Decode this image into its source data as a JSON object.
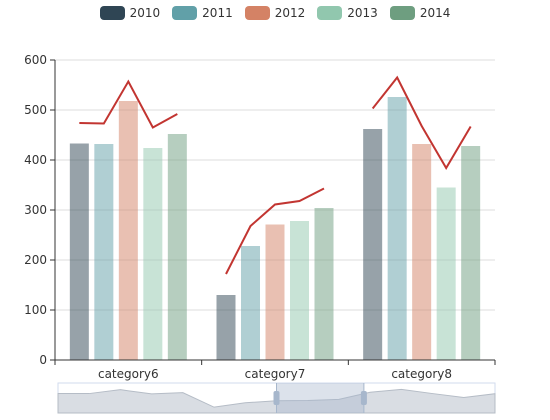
{
  "legend": [
    {
      "label": "2010",
      "color": "#2f4554"
    },
    {
      "label": "2011",
      "color": "#61a0a8"
    },
    {
      "label": "2012",
      "color": "#d48265"
    },
    {
      "label": "2013",
      "color": "#91c7ae"
    },
    {
      "label": "2014",
      "color": "#6e9e80"
    }
  ],
  "chart_data": {
    "type": "bar",
    "categories": [
      "category6",
      "category7",
      "category8"
    ],
    "series": [
      {
        "name": "2010",
        "values": [
          433,
          130,
          462
        ]
      },
      {
        "name": "2011",
        "values": [
          432,
          228,
          526
        ]
      },
      {
        "name": "2012",
        "values": [
          518,
          271,
          432
        ]
      },
      {
        "name": "2013",
        "values": [
          424,
          278,
          345
        ]
      },
      {
        "name": "2014",
        "values": [
          452,
          304,
          428
        ]
      }
    ],
    "line_series": {
      "color": "#c23531",
      "values": [
        [
          474,
          473,
          557,
          465,
          492
        ],
        [
          172,
          268,
          311,
          318,
          343
        ],
        [
          503,
          565,
          468,
          384,
          467
        ]
      ]
    },
    "yticks": [
      "0",
      "100",
      "200",
      "300",
      "400",
      "500",
      "600"
    ],
    "ylim": [
      0,
      600
    ],
    "grid": true,
    "legend_position": "top-center",
    "bar_opacity": 0.5,
    "slider": {
      "start_fraction": 0.5,
      "end_fraction": 0.7
    }
  }
}
